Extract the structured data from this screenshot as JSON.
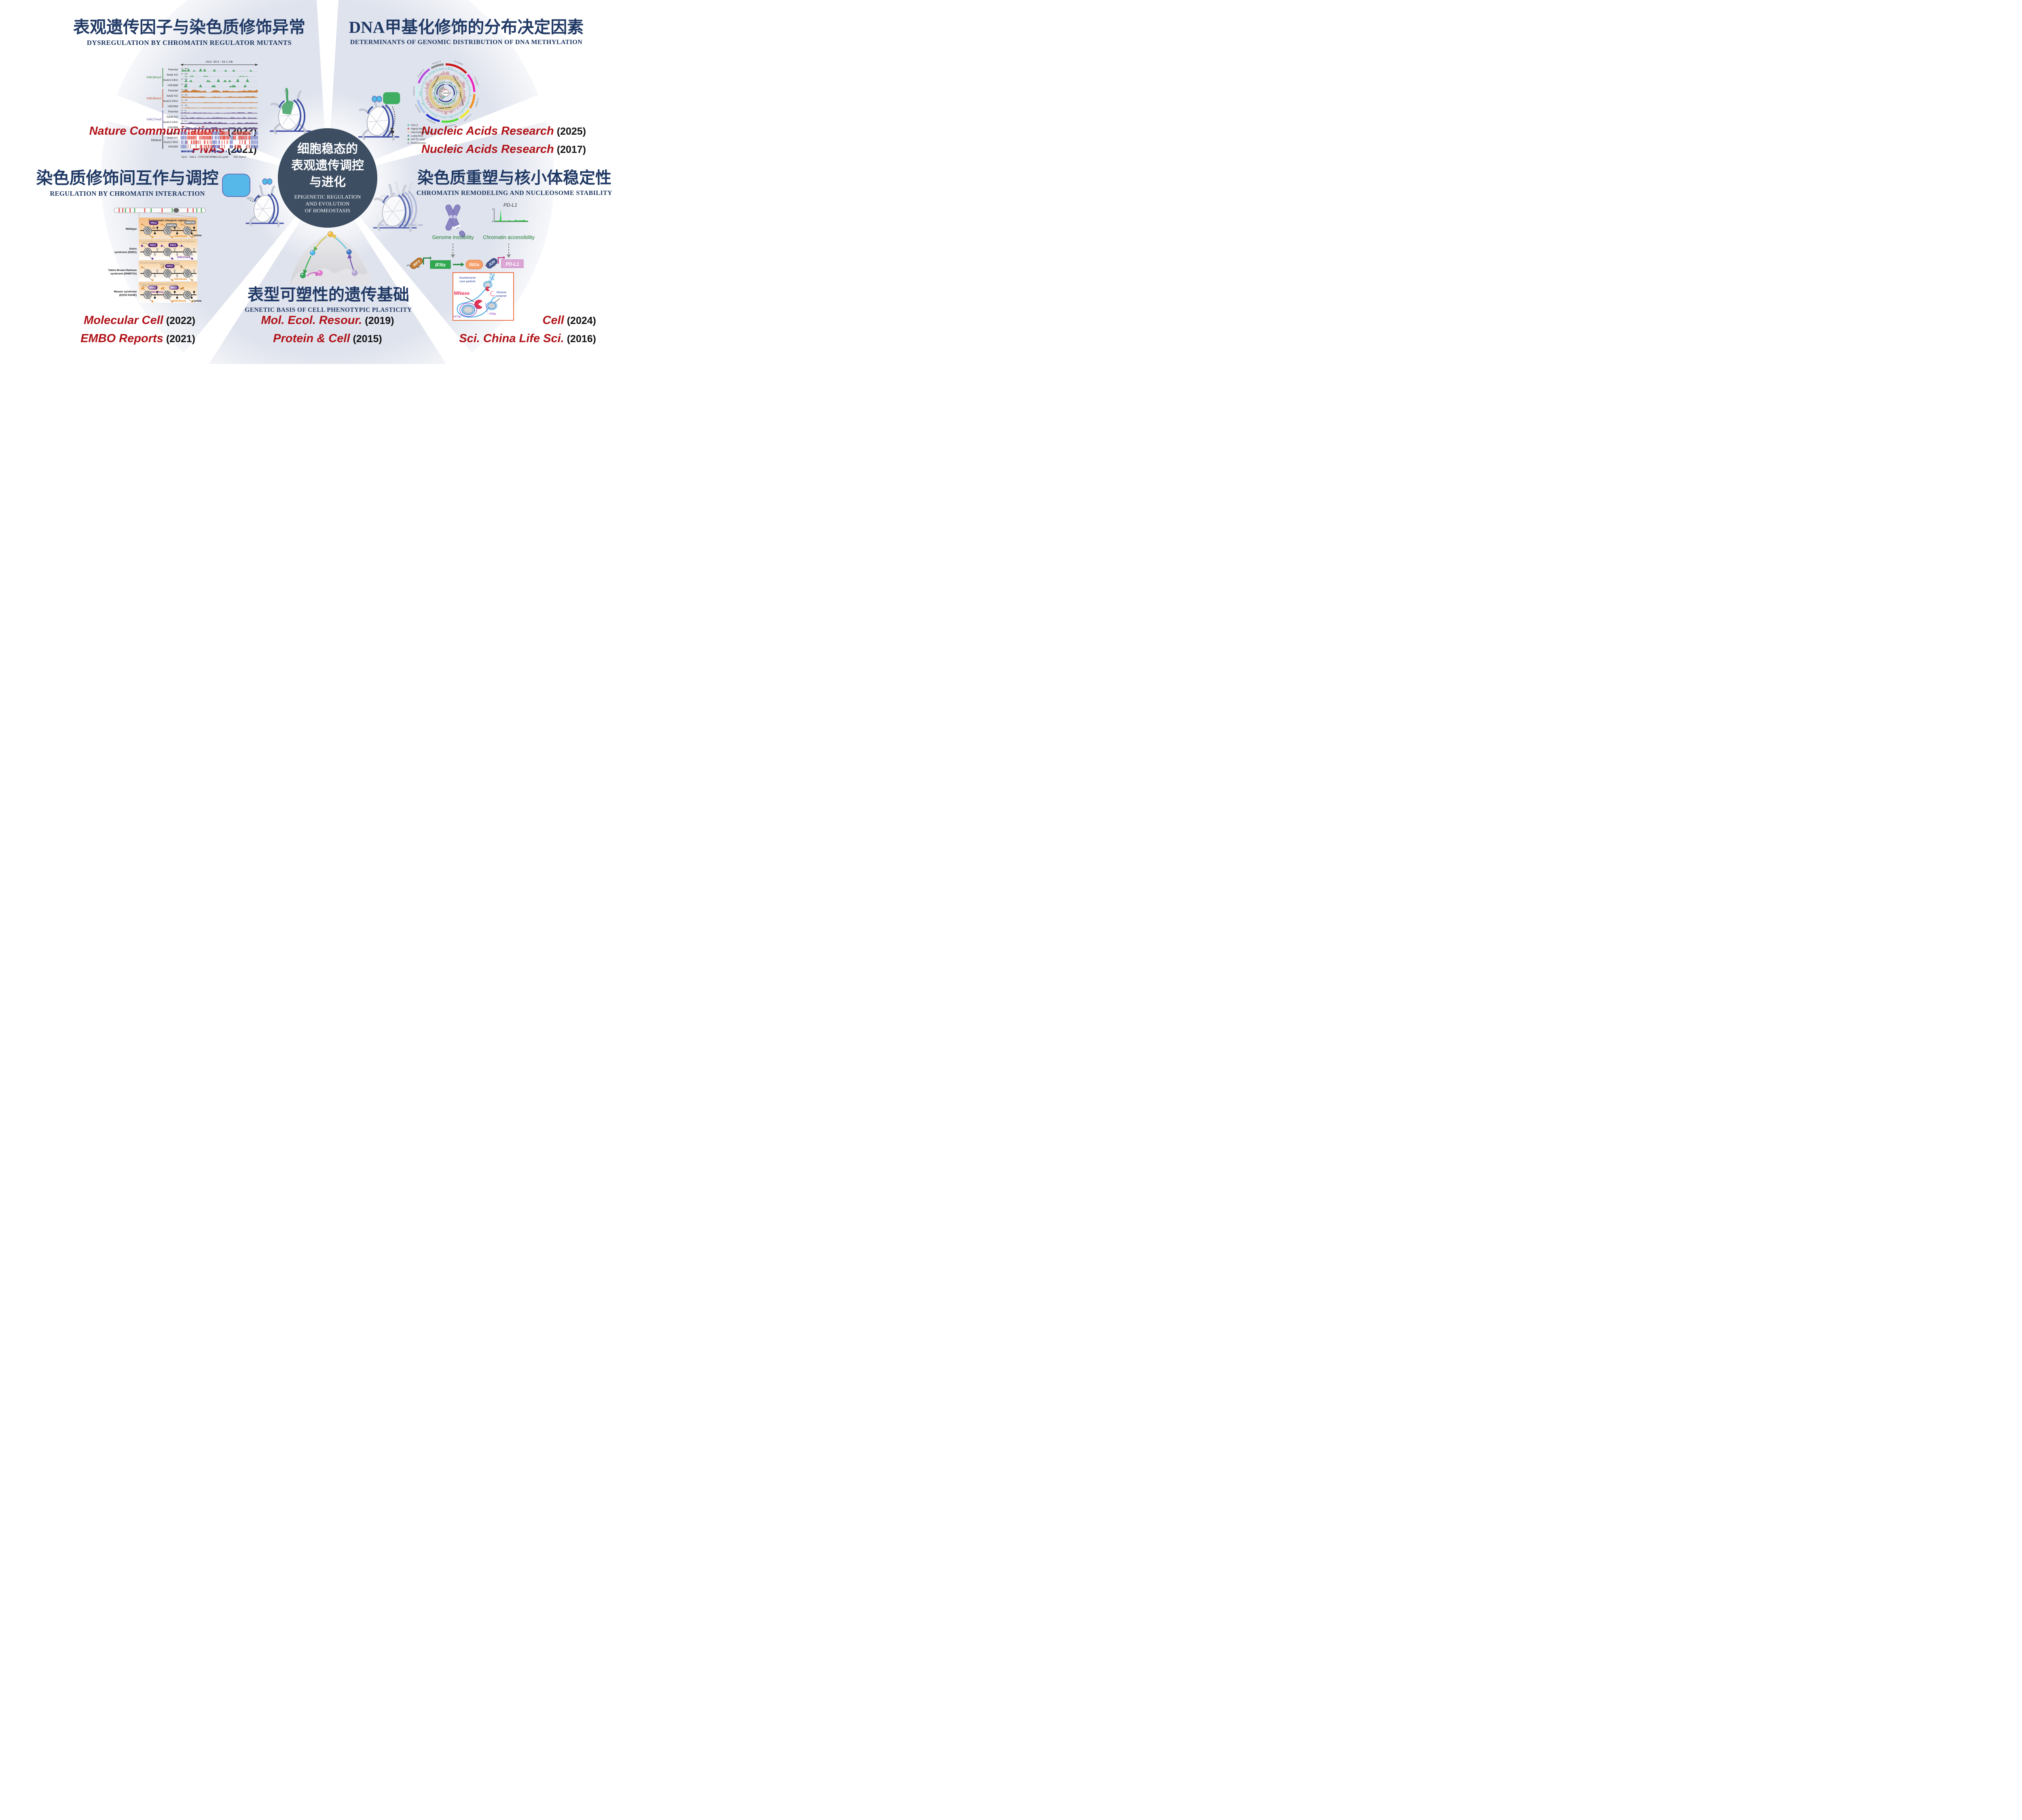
{
  "theme": {
    "petal_color": "#dfe3ed",
    "center_color": "#3d4e63",
    "title_color": "#1f3864",
    "journal_color": "#b01218",
    "year_color": "#111111"
  },
  "center": {
    "zh": [
      "细胞稳态的",
      "表观遗传调控",
      "与进化"
    ],
    "en": [
      "EPIGENETIC REGULATION",
      "AND EVOLUTION",
      "OF HOMEOSTASIS"
    ]
  },
  "sections": {
    "top_left": {
      "title": "表观遗传因子与染色质修饰异常",
      "subtitle": "DYSREGULATION BY CHROMATIN REGULATOR MUTANTS",
      "pubs": [
        {
          "journal": "Nature Communications",
          "year": "(2023)"
        },
        {
          "journal": "PNAS",
          "year": "(2021)"
        }
      ]
    },
    "top_right": {
      "title": "DNA甲基化修饰的分布决定因素",
      "subtitle": "DETERMINANTS OF GENOMIC DISTRIBUTION OF DNA METHYLATION",
      "pubs": [
        {
          "journal": "Nucleic Acids Research",
          "year": "(2025)"
        },
        {
          "journal": "Nucleic Acids Research",
          "year": "(2017)"
        }
      ]
    },
    "mid_left": {
      "title": "染色质修饰间互作与调控",
      "subtitle": "REGULATION BY CHROMATIN INTERACTION",
      "pubs": [
        {
          "journal": "Molecular Cell",
          "year": "(2022)"
        },
        {
          "journal": "EMBO Reports",
          "year": "(2021)"
        }
      ]
    },
    "mid_right": {
      "title": "染色质重塑与核小体稳定性",
      "subtitle": "CHROMATIN REMODELING AND NUCLEOSOME STABILITY",
      "pubs": [
        {
          "journal": "Cell",
          "year": "(2024)"
        },
        {
          "journal": "Sci. China Life Sci.",
          "year": "(2016)"
        }
      ]
    },
    "bottom": {
      "title": "表型可塑性的遗传基础",
      "subtitle": "GENETIC BASIS OF CELL PHENOTYPIC PLASTICITY",
      "pubs": [
        {
          "journal": "Mol. Ecol. Resour.",
          "year": "(2019)"
        },
        {
          "journal": "Protein & Cell",
          "year": "(2015)"
        }
      ]
    }
  },
  "figures": {
    "browser": {
      "region": "chr2: 43.0 - 54.1 mb",
      "tracks": [
        "Parental",
        "Setd2 KO",
        "Nsd1/2 DKO",
        "H3K36M"
      ],
      "groups": [
        {
          "name": "H3K36me3",
          "label_color": "#2e7d33",
          "fill": "#3e9e57",
          "range": "(0 - 50)"
        },
        {
          "name": "H3K36me2",
          "label_color": "#b5431b",
          "fill": "#c9772f",
          "range": "(0 - 30)"
        },
        {
          "name": "H3K27me3",
          "label_color": "#5b4a9b",
          "fill": "#6e5590",
          "range": "(0 - 5)"
        }
      ],
      "dname": {
        "name": "DNAme",
        "label_color": "#1a1a1a",
        "hot": "#e2574e",
        "cold": "#8089c9"
      },
      "genes": [
        "Kynu",
        "Gtdc1",
        "1700019E08Rik",
        "Acvr2a",
        "Lypd6",
        "Neb",
        "Stam2"
      ]
    },
    "circos": {
      "center_label": "scf_8253803",
      "legend": [
        {
          "label": "H2A.Z",
          "color": "#3fbdb4"
        },
        {
          "label": "Highly-6mA",
          "color": "#bf5452"
        },
        {
          "label": "Intermediately-6mA",
          "color": "#ddc98e"
        },
        {
          "label": "Lowly-6mA",
          "color": "#4f81bd"
        },
        {
          "label": "GA*TC motif",
          "color": "#3f9e4d"
        },
        {
          "label": "Nucleosomes",
          "color": "#a2a2a2"
        }
      ],
      "scaffolds": [
        {
          "label": "scf_8254803",
          "color": "#cc1111"
        },
        {
          "label": "scf_8254667",
          "color": "#ee22bb"
        },
        {
          "label": "scf_8254697",
          "color": "#f39019"
        },
        {
          "label": "scf_8254659",
          "color": "#f0e821"
        },
        {
          "label": "scf_8254752",
          "color": "#55dd33"
        },
        {
          "label": "scf_8254811",
          "color": "#2233cc"
        },
        {
          "label": "scf_8254650",
          "color": "#a9c4ef"
        },
        {
          "label": "scf_8254470",
          "color": "#c9f2f0"
        },
        {
          "label": "scf_8254716",
          "color": "#b84ce0"
        },
        {
          "label": "scf_8254491",
          "color": "#8a8a8a"
        }
      ],
      "inner_genes": [
        "TTHERM_01624900",
        "TTHERM_01623890",
        "TTHERM_001623890",
        "TTHERM_01624890"
      ]
    },
    "syndromes": {
      "prc2": "PRC2",
      "dnmt3a": "DNMT3A",
      "h3k36me2": "H3K36me2",
      "h3k27me3": "H3K27me3",
      "cpgme": "CpGme",
      "panels": [
        {
          "label_lines": [
            "Wildtype"
          ],
          "header": "Euchromatic intergenic regions",
          "type": "wt"
        },
        {
          "label_lines": [
            "Sotos",
            "syndrome (NSD1)"
          ],
          "header": "Loss of H3K36me2 and DNMT3A recruitment & gain of H3K27me3",
          "type": "sotos"
        },
        {
          "label_lines": [
            "Tatton-Brown-Rahman",
            "syndrome (DNMT3A)"
          ],
          "header": "Decreased chromatin occupany mutant DNMT3A",
          "type": "tbr"
        },
        {
          "label_lines": [
            "Weaver syndrome",
            "(EZH2 K634E)"
          ],
          "header": "H3K36 methylation-insensitive EZH2 mutation",
          "type": "weaver"
        }
      ]
    },
    "remodel": {
      "genome_instability": "Genome instability",
      "chromatin_accessibility": "Chromatin accessibility",
      "pdl1_track": "PD-L1",
      "axis_top": "1",
      "axis_bottom": "0",
      "irf3": "IRF3",
      "ifns": "IFNs",
      "isgs": "ISGs",
      "jun": "JUN",
      "pdl1": "PD-L1"
    },
    "mnase": {
      "core_particle": [
        "Nucleosome",
        "core particle"
      ],
      "histone_octamer": [
        "Histone",
        "octamer"
      ],
      "mnase": "MNase",
      "bp50": "~50bp",
      "bp147": "147bp"
    }
  }
}
